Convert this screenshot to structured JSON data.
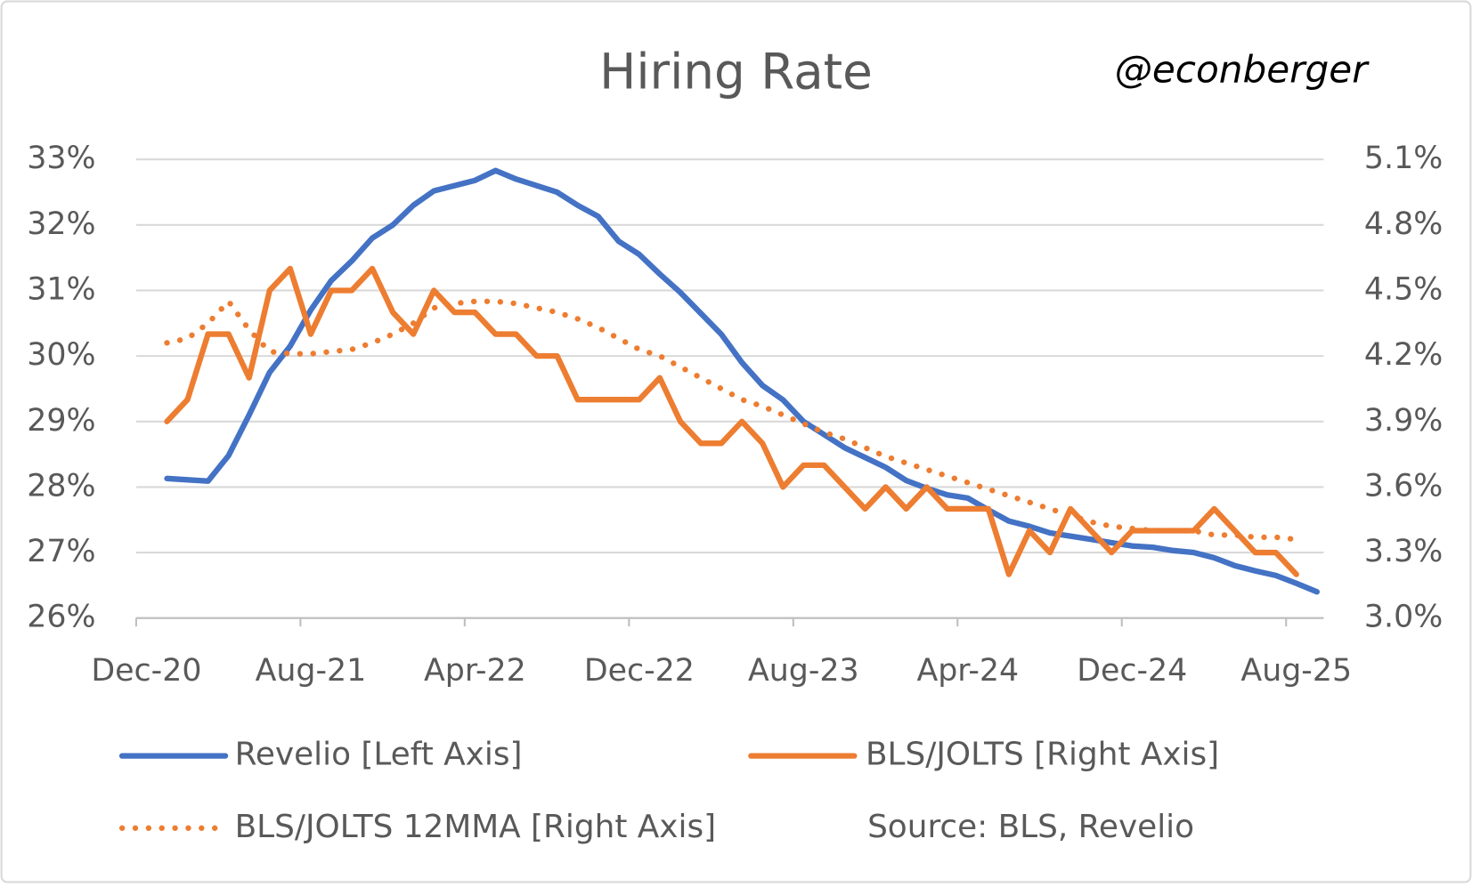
{
  "chart_data": {
    "type": "line",
    "title": "Hiring Rate",
    "watermark": "@econberger",
    "note": "Source: BLS, Revelio",
    "categories": [
      "Dec-20",
      null,
      null,
      null,
      null,
      null,
      null,
      null,
      "Aug-21",
      null,
      null,
      null,
      null,
      null,
      null,
      null,
      "Apr-22",
      null,
      null,
      null,
      null,
      null,
      null,
      null,
      "Dec-22",
      null,
      null,
      null,
      null,
      null,
      null,
      null,
      "Aug-23",
      null,
      null,
      null,
      null,
      null,
      null,
      null,
      "Apr-24",
      null,
      null,
      null,
      null,
      null,
      null,
      null,
      "Dec-24",
      null,
      null,
      null,
      null,
      null,
      null,
      null,
      "Aug-25",
      null
    ],
    "ylim": [
      26,
      33
    ],
    "yticks": [
      {
        "value": 26,
        "label": "26%"
      },
      {
        "value": 27,
        "label": "27%"
      },
      {
        "value": 28,
        "label": "28%"
      },
      {
        "value": 29,
        "label": "29%"
      },
      {
        "value": 30,
        "label": "30%"
      },
      {
        "value": 31,
        "label": "31%"
      },
      {
        "value": 32,
        "label": "32%"
      },
      {
        "value": 33,
        "label": "33%"
      }
    ],
    "y2lim": [
      3.0,
      5.1
    ],
    "y2ticks": [
      {
        "value": 3.0,
        "label": "3.0%"
      },
      {
        "value": 3.3,
        "label": "3.3%"
      },
      {
        "value": 3.6,
        "label": "3.6%"
      },
      {
        "value": 3.9,
        "label": "3.9%"
      },
      {
        "value": 4.2,
        "label": "4.2%"
      },
      {
        "value": 4.5,
        "label": "4.5%"
      },
      {
        "value": 4.8,
        "label": "4.8%"
      },
      {
        "value": 5.1,
        "label": "5.1%"
      }
    ],
    "grid": true,
    "series": [
      {
        "name": "Revelio [Left Axis]",
        "color": "#4472c4",
        "style": "solid",
        "axis": "y",
        "values": [
          null,
          28.13,
          28.11,
          28.09,
          28.48,
          29.1,
          29.75,
          30.15,
          30.7,
          31.15,
          31.45,
          31.8,
          32.0,
          32.3,
          32.52,
          32.6,
          32.68,
          32.83,
          32.7,
          32.6,
          32.5,
          32.3,
          32.13,
          31.75,
          31.55,
          31.25,
          30.97,
          30.65,
          30.33,
          29.9,
          29.55,
          29.33,
          29.0,
          28.8,
          28.6,
          28.45,
          28.3,
          28.1,
          27.98,
          27.88,
          27.83,
          27.65,
          27.48,
          27.4,
          27.3,
          27.25,
          27.2,
          27.15,
          27.1,
          27.08,
          27.03,
          27.0,
          26.92,
          26.8,
          26.72,
          26.65,
          26.53,
          26.4
        ]
      },
      {
        "name": "BLS/JOLTS [Right Axis]",
        "color": "#ed7d31",
        "style": "solid",
        "axis": "y2",
        "values": [
          null,
          3.9,
          4.0,
          4.3,
          4.3,
          4.1,
          4.5,
          4.6,
          4.3,
          4.5,
          4.5,
          4.6,
          4.4,
          4.3,
          4.5,
          4.4,
          4.4,
          4.3,
          4.3,
          4.2,
          4.2,
          4.0,
          4.0,
          4.0,
          4.0,
          4.1,
          3.9,
          3.8,
          3.8,
          3.9,
          3.8,
          3.6,
          3.7,
          3.7,
          3.6,
          3.5,
          3.6,
          3.5,
          3.6,
          3.5,
          3.5,
          3.5,
          3.2,
          3.4,
          3.3,
          3.5,
          3.4,
          3.3,
          3.4,
          3.4,
          3.4,
          3.4,
          3.5,
          3.4,
          3.3,
          3.3,
          3.2,
          null
        ]
      },
      {
        "name": "BLS/JOLTS 12MMA [Right Axis]",
        "color": "#ed7d31",
        "style": "dotted",
        "axis": "y2",
        "values": [
          null,
          4.26,
          4.28,
          4.35,
          4.45,
          4.32,
          4.22,
          4.21,
          4.21,
          4.22,
          4.23,
          4.26,
          4.3,
          4.35,
          4.42,
          4.44,
          4.45,
          4.45,
          4.44,
          4.42,
          4.4,
          4.37,
          4.33,
          4.28,
          4.23,
          4.2,
          4.15,
          4.1,
          4.05,
          4.0,
          3.97,
          3.93,
          3.89,
          3.85,
          3.82,
          3.78,
          3.74,
          3.71,
          3.68,
          3.65,
          3.62,
          3.59,
          3.56,
          3.53,
          3.5,
          3.47,
          3.44,
          3.42,
          3.41,
          3.4,
          3.4,
          3.4,
          3.38,
          3.38,
          3.37,
          3.37,
          3.36,
          null
        ]
      }
    ]
  }
}
